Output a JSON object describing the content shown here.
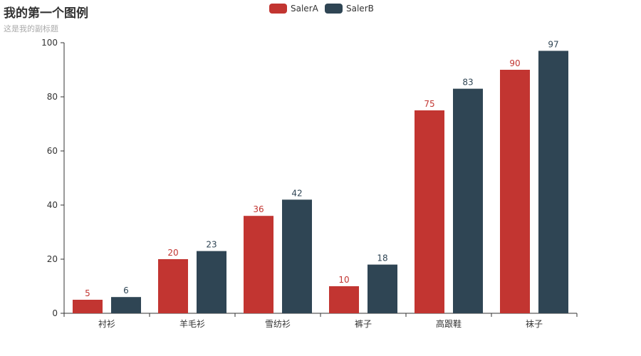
{
  "chart_data": {
    "type": "bar",
    "title": "我的第一个图例",
    "subtitle": "这是我的副标题",
    "categories": [
      "衬衫",
      "羊毛衫",
      "雪纺衫",
      "裤子",
      "高跟鞋",
      "袜子"
    ],
    "series": [
      {
        "name": "SalerA",
        "values": [
          5,
          20,
          36,
          10,
          75,
          90
        ],
        "color": "#c23531"
      },
      {
        "name": "SalerB",
        "values": [
          6,
          23,
          42,
          18,
          83,
          97
        ],
        "color": "#2f4554"
      }
    ],
    "ylim": [
      0,
      100
    ],
    "yticks": [
      0,
      20,
      40,
      60,
      80,
      100
    ],
    "grid": false,
    "legend_position": "top-center",
    "data_labels": "top"
  }
}
